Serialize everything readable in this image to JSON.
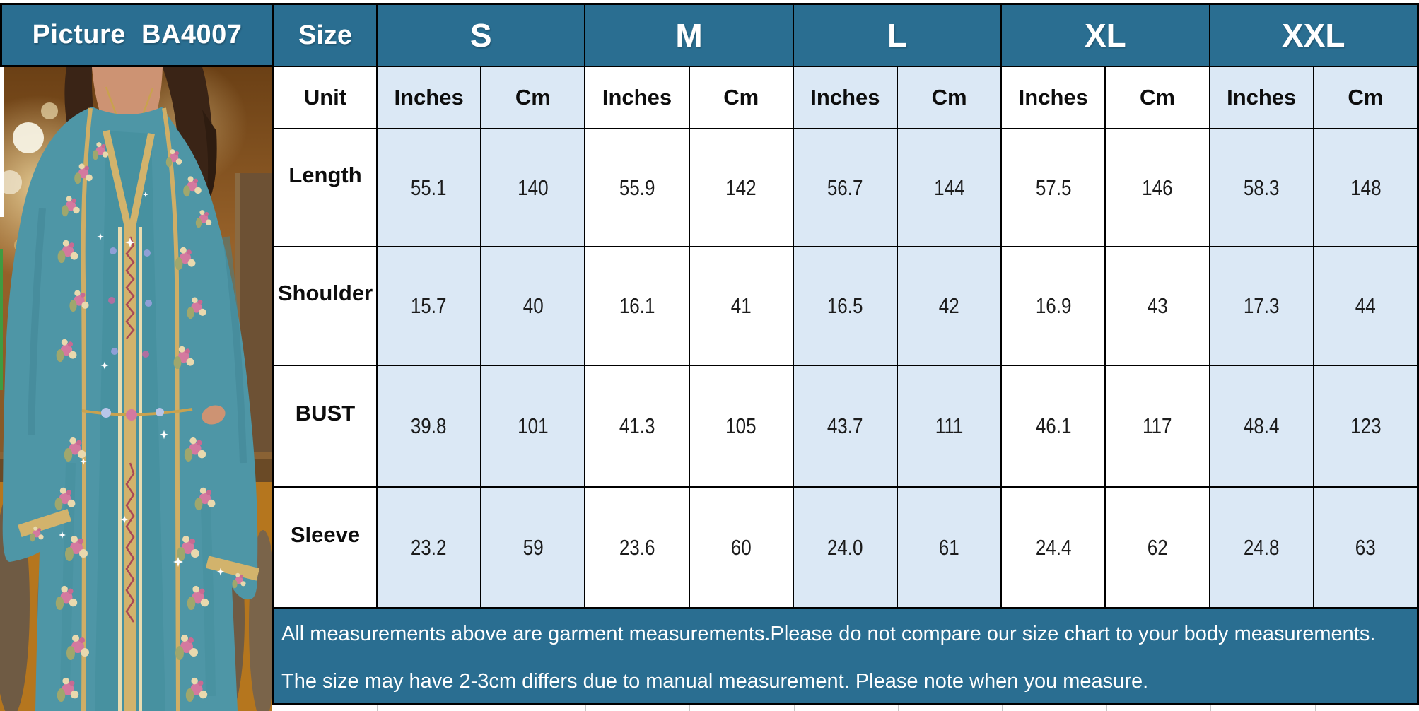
{
  "colors": {
    "header_teal": "#2A6E91",
    "cell_light_blue": "#DBE8F5",
    "cell_white": "#FFFFFF",
    "grid_border": "#000000",
    "note_text": "#FFFFFF",
    "bottom_gridline": "#C6C6C6",
    "artifact_green": "#3F9B41",
    "dress_teal": "#4E96A6",
    "gold_trim": "#D2B36C",
    "embroidery_pink": "#D4799F",
    "background_brown": "#97622A"
  },
  "picture_panel": {
    "title": "Picture  BA4007",
    "photo_alt": "Model wearing a teal embroidered kaftan with gold trim, floral pink embroidery, standing in front of a warm wooden balustrade with golden bokeh lights"
  },
  "size_chart": {
    "size_col_header": "Size",
    "sizes": [
      "S",
      "M",
      "L",
      "XL",
      "XXL"
    ],
    "unit_label": "Unit",
    "unit_names": [
      "Inches",
      "Cm"
    ],
    "rows": [
      {
        "label": "Length",
        "values": [
          "55.1",
          "140",
          "55.9",
          "142",
          "56.7",
          "144",
          "57.5",
          "146",
          "58.3",
          "148"
        ]
      },
      {
        "label": "Shoulder",
        "values": [
          "15.7",
          "40",
          "16.1",
          "41",
          "16.5",
          "42",
          "16.9",
          "43",
          "17.3",
          "44"
        ]
      },
      {
        "label": "BUST",
        "values": [
          "39.8",
          "101",
          "41.3",
          "105",
          "43.7",
          "111",
          "46.1",
          "117",
          "48.4",
          "123"
        ]
      },
      {
        "label": "Sleeve",
        "values": [
          "23.2",
          "59",
          "23.6",
          "60",
          "24.0",
          "61",
          "24.4",
          "62",
          "24.8",
          "63"
        ]
      }
    ],
    "notes": [
      "All measurements above are garment measurements.Please do not compare our size chart to your body measurements.",
      "The size may have 2-3cm differs due to manual measurement. Please note when you measure."
    ]
  },
  "chart_data": {
    "type": "table",
    "title": "Picture BA4007 garment size chart",
    "columns": [
      "Size",
      "S Inches",
      "S Cm",
      "M Inches",
      "M Cm",
      "L Inches",
      "L Cm",
      "XL Inches",
      "XL Cm",
      "XXL Inches",
      "XXL Cm"
    ],
    "rows": [
      [
        "Length",
        55.1,
        140,
        55.9,
        142,
        56.7,
        144,
        57.5,
        146,
        58.3,
        148
      ],
      [
        "Shoulder",
        15.7,
        40,
        16.1,
        41,
        16.5,
        42,
        16.9,
        43,
        17.3,
        44
      ],
      [
        "BUST",
        39.8,
        101,
        41.3,
        105,
        43.7,
        111,
        46.1,
        117,
        48.4,
        123
      ],
      [
        "Sleeve",
        23.2,
        59,
        23.6,
        60,
        24.0,
        61,
        24.4,
        62,
        24.8,
        63
      ]
    ],
    "notes": [
      "All measurements above are garment measurements.Please do not compare our size chart to your body measurements.",
      "The size may have 2-3cm differs due to manual measurement. Please note when you measure."
    ]
  }
}
